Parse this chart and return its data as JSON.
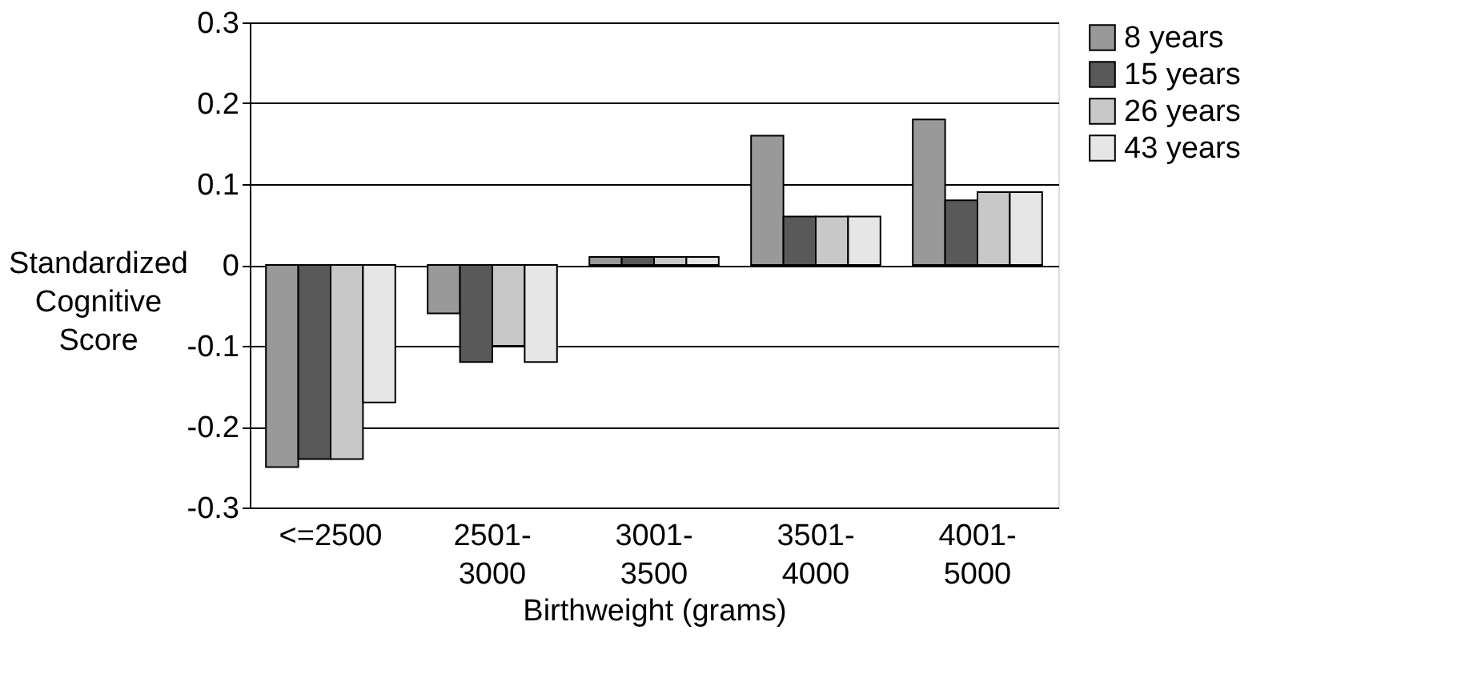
{
  "chart_data": {
    "type": "bar",
    "xlabel": "Birthweight (grams)",
    "ylabel": "Standardized Cognitive Score",
    "categories": [
      "<=2500",
      "2501-3000",
      "3001-3500",
      "3501-4000",
      "4001-5000"
    ],
    "series": [
      {
        "name": "8 years",
        "color": "#999999",
        "values": [
          -0.25,
          -0.06,
          0.01,
          0.16,
          0.18
        ]
      },
      {
        "name": "15 years",
        "color": "#595959",
        "values": [
          -0.24,
          -0.12,
          0.01,
          0.06,
          0.08
        ]
      },
      {
        "name": "26 years",
        "color": "#c8c8c8",
        "values": [
          -0.24,
          -0.1,
          0.01,
          0.06,
          0.09
        ]
      },
      {
        "name": "43 years",
        "color": "#e6e6e6",
        "values": [
          -0.17,
          -0.12,
          0.01,
          0.06,
          0.09
        ]
      }
    ],
    "ylim": [
      -0.3,
      0.3
    ],
    "yticks": [
      -0.3,
      -0.2,
      -0.1,
      0,
      0.1,
      0.2,
      0.3
    ],
    "grid": "y",
    "legend": "right"
  }
}
